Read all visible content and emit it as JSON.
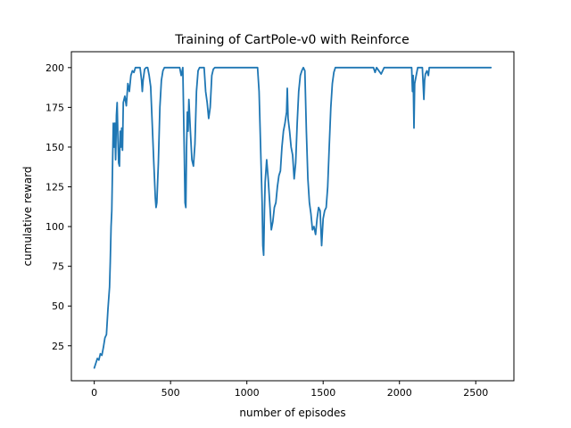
{
  "chart_data": {
    "type": "line",
    "title": "Training of CartPole-v0 with Reinforce",
    "xlabel": "number of episodes",
    "ylabel": "cumulative reward",
    "xlim": [
      -150,
      2750
    ],
    "ylim": [
      3,
      210
    ],
    "xticks": [
      0,
      500,
      1000,
      1500,
      2000,
      2500
    ],
    "yticks": [
      25,
      50,
      75,
      100,
      125,
      150,
      175,
      200
    ],
    "grid": false,
    "series": [
      {
        "color": "#1f77b4",
        "points": [
          [
            0,
            11
          ],
          [
            10,
            14
          ],
          [
            20,
            17
          ],
          [
            30,
            16
          ],
          [
            40,
            20
          ],
          [
            50,
            19
          ],
          [
            60,
            24
          ],
          [
            70,
            30
          ],
          [
            80,
            32
          ],
          [
            90,
            48
          ],
          [
            100,
            62
          ],
          [
            105,
            78
          ],
          [
            110,
            100
          ],
          [
            115,
            110
          ],
          [
            120,
            140
          ],
          [
            125,
            165
          ],
          [
            130,
            150
          ],
          [
            135,
            165
          ],
          [
            140,
            142
          ],
          [
            145,
            170
          ],
          [
            150,
            178
          ],
          [
            155,
            155
          ],
          [
            160,
            140
          ],
          [
            165,
            138
          ],
          [
            170,
            160
          ],
          [
            175,
            150
          ],
          [
            180,
            162
          ],
          [
            185,
            148
          ],
          [
            190,
            178
          ],
          [
            200,
            182
          ],
          [
            210,
            176
          ],
          [
            220,
            190
          ],
          [
            230,
            185
          ],
          [
            240,
            195
          ],
          [
            250,
            198
          ],
          [
            260,
            197
          ],
          [
            270,
            200
          ],
          [
            290,
            200
          ],
          [
            300,
            200
          ],
          [
            310,
            192
          ],
          [
            315,
            185
          ],
          [
            320,
            192
          ],
          [
            330,
            199
          ],
          [
            340,
            200
          ],
          [
            350,
            200
          ],
          [
            360,
            195
          ],
          [
            370,
            188
          ],
          [
            380,
            165
          ],
          [
            390,
            140
          ],
          [
            400,
            118
          ],
          [
            405,
            112
          ],
          [
            410,
            115
          ],
          [
            420,
            140
          ],
          [
            430,
            175
          ],
          [
            440,
            192
          ],
          [
            450,
            198
          ],
          [
            460,
            200
          ],
          [
            560,
            200
          ],
          [
            570,
            195
          ],
          [
            580,
            200
          ],
          [
            590,
            145
          ],
          [
            595,
            115
          ],
          [
            600,
            112
          ],
          [
            605,
            150
          ],
          [
            610,
            172
          ],
          [
            615,
            160
          ],
          [
            620,
            180
          ],
          [
            630,
            160
          ],
          [
            640,
            142
          ],
          [
            650,
            138
          ],
          [
            660,
            152
          ],
          [
            670,
            185
          ],
          [
            680,
            198
          ],
          [
            690,
            200
          ],
          [
            720,
            200
          ],
          [
            730,
            185
          ],
          [
            740,
            178
          ],
          [
            750,
            168
          ],
          [
            760,
            175
          ],
          [
            770,
            195
          ],
          [
            780,
            199
          ],
          [
            790,
            200
          ],
          [
            1070,
            200
          ],
          [
            1080,
            185
          ],
          [
            1090,
            150
          ],
          [
            1100,
            115
          ],
          [
            1105,
            88
          ],
          [
            1110,
            82
          ],
          [
            1115,
            110
          ],
          [
            1120,
            128
          ],
          [
            1130,
            142
          ],
          [
            1140,
            130
          ],
          [
            1150,
            115
          ],
          [
            1160,
            98
          ],
          [
            1170,
            103
          ],
          [
            1180,
            112
          ],
          [
            1190,
            115
          ],
          [
            1200,
            125
          ],
          [
            1210,
            132
          ],
          [
            1220,
            135
          ],
          [
            1230,
            150
          ],
          [
            1240,
            160
          ],
          [
            1250,
            165
          ],
          [
            1260,
            172
          ],
          [
            1265,
            187
          ],
          [
            1270,
            168
          ],
          [
            1280,
            160
          ],
          [
            1290,
            150
          ],
          [
            1300,
            145
          ],
          [
            1310,
            130
          ],
          [
            1320,
            140
          ],
          [
            1330,
            165
          ],
          [
            1340,
            185
          ],
          [
            1350,
            195
          ],
          [
            1360,
            198
          ],
          [
            1370,
            200
          ],
          [
            1380,
            198
          ],
          [
            1390,
            160
          ],
          [
            1400,
            130
          ],
          [
            1410,
            115
          ],
          [
            1420,
            108
          ],
          [
            1430,
            98
          ],
          [
            1440,
            100
          ],
          [
            1450,
            95
          ],
          [
            1460,
            105
          ],
          [
            1470,
            112
          ],
          [
            1480,
            110
          ],
          [
            1490,
            88
          ],
          [
            1500,
            105
          ],
          [
            1510,
            110
          ],
          [
            1520,
            112
          ],
          [
            1530,
            125
          ],
          [
            1540,
            150
          ],
          [
            1550,
            175
          ],
          [
            1560,
            190
          ],
          [
            1570,
            197
          ],
          [
            1580,
            200
          ],
          [
            1830,
            200
          ],
          [
            1840,
            197
          ],
          [
            1850,
            200
          ],
          [
            1880,
            196
          ],
          [
            1890,
            198
          ],
          [
            1900,
            200
          ],
          [
            2080,
            200
          ],
          [
            2085,
            185
          ],
          [
            2090,
            195
          ],
          [
            2095,
            162
          ],
          [
            2100,
            190
          ],
          [
            2110,
            195
          ],
          [
            2120,
            200
          ],
          [
            2150,
            200
          ],
          [
            2160,
            180
          ],
          [
            2165,
            192
          ],
          [
            2170,
            196
          ],
          [
            2180,
            198
          ],
          [
            2190,
            195
          ],
          [
            2195,
            200
          ],
          [
            2600,
            200
          ]
        ]
      }
    ]
  }
}
